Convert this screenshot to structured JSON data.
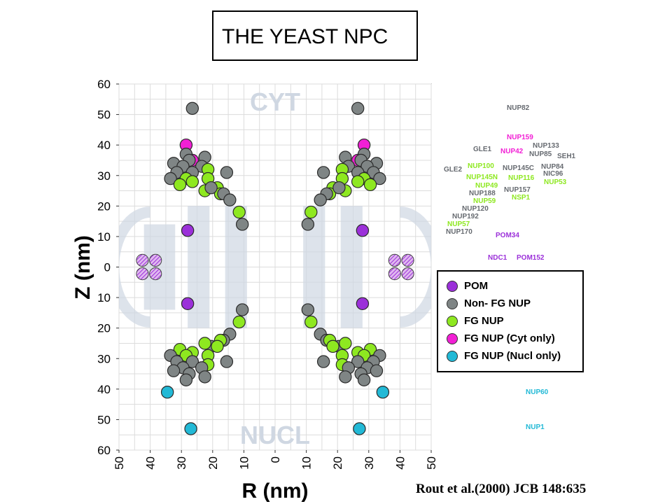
{
  "title": "THE YEAST NPC",
  "citation": "Rout et al.(2000) JCB 148:635",
  "colors": {
    "POM": "#9b30d9",
    "NON_FG": "#7f8585",
    "FG": "#8ee820",
    "FG_CYT": "#f21fd5",
    "FG_NUCL": "#22b9d6",
    "grid": "#dcdcdc",
    "label_gray": "#666a70",
    "watermark": "#cfd7e2"
  },
  "chart_data": {
    "type": "scatter",
    "xlabel": "R (nm)",
    "ylabel": "Z (nm)",
    "x_ticks": [
      50,
      40,
      30,
      20,
      10,
      0,
      10,
      20,
      30,
      40,
      50
    ],
    "y_ticks": [
      60,
      50,
      40,
      30,
      20,
      10,
      0,
      10,
      20,
      30,
      40,
      50,
      60
    ],
    "xlim": [
      -50,
      50
    ],
    "ylim": [
      -60,
      60
    ],
    "grid": true,
    "region_labels": {
      "top": "CYT",
      "bottom": "NUCL"
    },
    "legend": {
      "position": "right",
      "entries": [
        {
          "label": "POM",
          "category": "POM"
        },
        {
          "label": "Non- FG NUP",
          "category": "NON_FG"
        },
        {
          "label": "FG NUP",
          "category": "FG"
        },
        {
          "label": "FG NUP (Cyt only)",
          "category": "FG_CYT"
        },
        {
          "label": "FG NUP (Nucl only)",
          "category": "FG_NUCL"
        }
      ]
    },
    "membrane_points": [
      {
        "x": 42.5,
        "y": 2.2
      },
      {
        "x": 38.3,
        "y": 2.2
      },
      {
        "x": 42.5,
        "y": -2.2
      },
      {
        "x": 38.3,
        "y": -2.2
      }
    ],
    "points_upper_left": [
      {
        "x": 26.5,
        "y": 52,
        "cat": "NON_FG"
      },
      {
        "x": 28.5,
        "y": 40,
        "cat": "FG_CYT"
      },
      {
        "x": 26.5,
        "y": 35,
        "cat": "FG_CYT"
      },
      {
        "x": 28.5,
        "y": 37,
        "cat": "NON_FG"
      },
      {
        "x": 22.5,
        "y": 36,
        "cat": "NON_FG"
      },
      {
        "x": 27.5,
        "y": 35,
        "cat": "NON_FG"
      },
      {
        "x": 32.5,
        "y": 34,
        "cat": "NON_FG"
      },
      {
        "x": 29.5,
        "y": 33,
        "cat": "NON_FG"
      },
      {
        "x": 23.5,
        "y": 33,
        "cat": "NON_FG"
      },
      {
        "x": 26.5,
        "y": 31,
        "cat": "NON_FG"
      },
      {
        "x": 31.5,
        "y": 31,
        "cat": "NON_FG"
      },
      {
        "x": 15.5,
        "y": 31,
        "cat": "NON_FG"
      },
      {
        "x": 33.5,
        "y": 29,
        "cat": "NON_FG"
      },
      {
        "x": 21.5,
        "y": 32,
        "cat": "FG"
      },
      {
        "x": 28.5,
        "y": 29,
        "cat": "FG"
      },
      {
        "x": 21.5,
        "y": 29,
        "cat": "FG"
      },
      {
        "x": 26.5,
        "y": 28,
        "cat": "FG"
      },
      {
        "x": 30.5,
        "y": 27,
        "cat": "FG"
      },
      {
        "x": 18.5,
        "y": 26,
        "cat": "FG"
      },
      {
        "x": 22.5,
        "y": 25,
        "cat": "FG"
      },
      {
        "x": 17.5,
        "y": 24,
        "cat": "FG"
      },
      {
        "x": 20.5,
        "y": 26,
        "cat": "NON_FG"
      },
      {
        "x": 16.5,
        "y": 24,
        "cat": "NON_FG"
      },
      {
        "x": 14.5,
        "y": 22,
        "cat": "NON_FG"
      },
      {
        "x": 11.5,
        "y": 18,
        "cat": "FG"
      },
      {
        "x": 10.5,
        "y": 14,
        "cat": "NON_FG"
      },
      {
        "x": 28.0,
        "y": 12,
        "cat": "POM"
      }
    ],
    "points_lower_left": [
      {
        "x": 28.0,
        "y": -12,
        "cat": "POM"
      },
      {
        "x": 10.5,
        "y": -14,
        "cat": "NON_FG"
      },
      {
        "x": 11.5,
        "y": -18,
        "cat": "FG"
      },
      {
        "x": 14.5,
        "y": -22,
        "cat": "NON_FG"
      },
      {
        "x": 16.5,
        "y": -24,
        "cat": "NON_FG"
      },
      {
        "x": 17.5,
        "y": -24,
        "cat": "FG"
      },
      {
        "x": 20.5,
        "y": -26,
        "cat": "NON_FG"
      },
      {
        "x": 22.5,
        "y": -25,
        "cat": "FG"
      },
      {
        "x": 18.5,
        "y": -26,
        "cat": "FG"
      },
      {
        "x": 30.5,
        "y": -27,
        "cat": "FG"
      },
      {
        "x": 26.5,
        "y": -28,
        "cat": "FG"
      },
      {
        "x": 21.5,
        "y": -29,
        "cat": "FG"
      },
      {
        "x": 28.5,
        "y": -29,
        "cat": "FG"
      },
      {
        "x": 21.5,
        "y": -32,
        "cat": "FG"
      },
      {
        "x": 33.5,
        "y": -29,
        "cat": "NON_FG"
      },
      {
        "x": 15.5,
        "y": -31,
        "cat": "NON_FG"
      },
      {
        "x": 31.5,
        "y": -31,
        "cat": "NON_FG"
      },
      {
        "x": 26.5,
        "y": -31,
        "cat": "NON_FG"
      },
      {
        "x": 23.5,
        "y": -33,
        "cat": "NON_FG"
      },
      {
        "x": 29.5,
        "y": -33,
        "cat": "NON_FG"
      },
      {
        "x": 32.5,
        "y": -34,
        "cat": "NON_FG"
      },
      {
        "x": 27.5,
        "y": -35,
        "cat": "NON_FG"
      },
      {
        "x": 22.5,
        "y": -36,
        "cat": "NON_FG"
      },
      {
        "x": 28.5,
        "y": -37,
        "cat": "NON_FG"
      },
      {
        "x": 34.5,
        "y": -41,
        "cat": "FG_NUCL"
      },
      {
        "x": 27.0,
        "y": -53,
        "cat": "FG_NUCL"
      }
    ],
    "nup_labels": [
      {
        "text": "NUP82",
        "cat": "NON_FG"
      },
      {
        "text": "NUP159",
        "cat": "FG_CYT"
      },
      {
        "text": "NUP133",
        "cat": "NON_FG"
      },
      {
        "text": "GLE1",
        "cat": "NON_FG"
      },
      {
        "text": "NUP42",
        "cat": "FG_CYT"
      },
      {
        "text": "NUP85",
        "cat": "NON_FG"
      },
      {
        "text": "SEH1",
        "cat": "NON_FG"
      },
      {
        "text": "NUP100",
        "cat": "FG"
      },
      {
        "text": "NUP145C",
        "cat": "NON_FG"
      },
      {
        "text": "NUP84",
        "cat": "NON_FG"
      },
      {
        "text": "GLE2",
        "cat": "NON_FG"
      },
      {
        "text": "NUP145N",
        "cat": "FG"
      },
      {
        "text": "NIC96",
        "cat": "NON_FG"
      },
      {
        "text": "NUP116",
        "cat": "FG"
      },
      {
        "text": "NUP49",
        "cat": "FG"
      },
      {
        "text": "NUP53",
        "cat": "FG"
      },
      {
        "text": "NUP188",
        "cat": "NON_FG"
      },
      {
        "text": "NUP157",
        "cat": "NON_FG"
      },
      {
        "text": "NUP59",
        "cat": "FG"
      },
      {
        "text": "NSP1",
        "cat": "FG"
      },
      {
        "text": "NUP120",
        "cat": "NON_FG"
      },
      {
        "text": "NUP192",
        "cat": "NON_FG"
      },
      {
        "text": "NUP57",
        "cat": "FG"
      },
      {
        "text": "NUP170",
        "cat": "NON_FG"
      },
      {
        "text": "POM34",
        "cat": "POM"
      },
      {
        "text": "NDC1",
        "cat": "POM"
      },
      {
        "text": "POM152",
        "cat": "POM"
      },
      {
        "text": "NUP60",
        "cat": "FG_NUCL"
      },
      {
        "text": "NUP1",
        "cat": "FG_NUCL"
      }
    ]
  }
}
